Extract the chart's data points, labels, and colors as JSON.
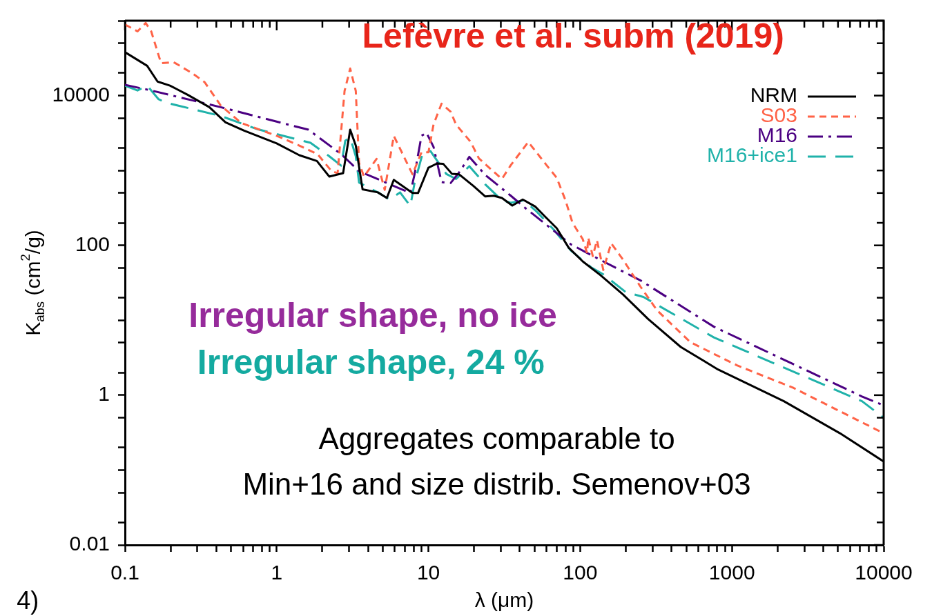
{
  "chart_data": {
    "type": "line",
    "xlabel": "λ (μm)",
    "ylabel": "K$_{abs}$ (cm$^{2}$/g)",
    "log": "xy",
    "legend": "top right",
    "marker": "none",
    "xlim": [
      0.1,
      10000
    ],
    "ylim": [
      0.01,
      100000
    ],
    "xticks": [
      0.1,
      {
        "value": 0.2,
        "label": null
      },
      {
        "value": 0.3,
        "label": null
      },
      {
        "value": 0.4,
        "label": null
      },
      {
        "value": 0.5,
        "label": null
      },
      {
        "value": 0.6,
        "label": null
      },
      {
        "value": 0.7,
        "label": null
      },
      {
        "value": 0.8,
        "label": null
      },
      {
        "value": 0.9,
        "label": null
      },
      1,
      {
        "value": 2,
        "label": null
      },
      {
        "value": 3,
        "label": null
      },
      {
        "value": 4,
        "label": null
      },
      {
        "value": 5,
        "label": null
      },
      {
        "value": 6,
        "label": null
      },
      {
        "value": 7,
        "label": null
      },
      {
        "value": 8,
        "label": null
      },
      {
        "value": 9,
        "label": null
      },
      10,
      {
        "value": 20,
        "label": null
      },
      {
        "value": 30,
        "label": null
      },
      {
        "value": 40,
        "label": null
      },
      {
        "value": 50,
        "label": null
      },
      {
        "value": 60,
        "label": null
      },
      {
        "value": 70,
        "label": null
      },
      {
        "value": 80,
        "label": null
      },
      {
        "value": 90,
        "label": null
      },
      100,
      {
        "value": 200,
        "label": null
      },
      {
        "value": 300,
        "label": null
      },
      {
        "value": 400,
        "label": null
      },
      {
        "value": 500,
        "label": null
      },
      {
        "value": 600,
        "label": null
      },
      {
        "value": 700,
        "label": null
      },
      {
        "value": 800,
        "label": null
      },
      {
        "value": 900,
        "label": null
      },
      1000,
      {
        "value": 2000,
        "label": null
      },
      {
        "value": 3000,
        "label": null
      },
      {
        "value": 4000,
        "label": null
      },
      {
        "value": 5000,
        "label": null
      },
      {
        "value": 6000,
        "label": null
      },
      {
        "value": 7000,
        "label": null
      },
      {
        "value": 8000,
        "label": null
      },
      {
        "value": 9000,
        "label": null
      },
      10000
    ],
    "yticks": [
      0.01,
      {
        "value": 0.02,
        "label": null
      },
      {
        "value": 0.05,
        "label": null
      },
      {
        "value": 0.1,
        "label": null
      },
      {
        "value": 0.2,
        "label": null
      },
      {
        "value": 0.5,
        "label": null
      },
      1,
      {
        "value": 2,
        "label": null
      },
      {
        "value": 5,
        "label": null
      },
      {
        "value": 10,
        "label": null
      },
      {
        "value": 20,
        "label": null
      },
      {
        "value": 50,
        "label": null
      },
      100,
      {
        "value": 200,
        "label": null
      },
      {
        "value": 500,
        "label": null
      },
      {
        "value": 1000,
        "label": null
      },
      {
        "value": 2000,
        "label": null
      },
      {
        "value": 5000,
        "label": null
      },
      10000,
      {
        "value": 20000,
        "label": null
      },
      {
        "value": 50000,
        "label": null
      },
      {
        "value": 100000,
        "label": null
      }
    ],
    "series": [
      {
        "name": "NRM",
        "color": "#000000",
        "line_style": "solid",
        "x": [
          0.1,
          0.14,
          0.164,
          0.198,
          0.26,
          0.36,
          0.46,
          0.61,
          1,
          1.41,
          1.84,
          2.22,
          2.74,
          3.05,
          3.32,
          3.68,
          4.64,
          5.32,
          5.91,
          7.85,
          8.54,
          10,
          11.4,
          12.5,
          14.3,
          15.9,
          19.8,
          23.7,
          26.9,
          30.5,
          35.7,
          41.8,
          50.5,
          59,
          70,
          84,
          104,
          136,
          192,
          280,
          460,
          810,
          2200,
          5150,
          10000
        ],
        "values": [
          38000,
          25000,
          15400,
          13600,
          10200,
          7000,
          4400,
          3400,
          2300,
          1600,
          1340,
          830,
          920,
          3500,
          2150,
          560,
          510,
          430,
          750,
          500,
          500,
          1090,
          1240,
          1230,
          900,
          890,
          620,
          450,
          460,
          430,
          340,
          410,
          330,
          240,
          170,
          93,
          61,
          40,
          22,
          10.4,
          4.4,
          2.2,
          0.83,
          0.31,
          0.13
        ]
      },
      {
        "name": "S03",
        "color": "#ff6347",
        "line_style": "dashed",
        "x": [
          0.1,
          0.121,
          0.137,
          0.149,
          0.173,
          0.209,
          0.28,
          0.335,
          0.427,
          0.585,
          1,
          1.41,
          1.86,
          2.3,
          2.52,
          2.8,
          3.05,
          3.32,
          3.49,
          3.76,
          4.55,
          5.15,
          5.91,
          7.85,
          9,
          10,
          10.8,
          12.2,
          14,
          15.2,
          19,
          21.5,
          25.8,
          30.5,
          34.9,
          45.5,
          59,
          70,
          80,
          89,
          104,
          111,
          113,
          121,
          129,
          142,
          160,
          192,
          250,
          321,
          532,
          1080,
          2520,
          10000
        ],
        "values": [
          89000,
          72000,
          93000,
          72000,
          27000,
          28000,
          19700,
          15100,
          7400,
          4300,
          2900,
          2150,
          1650,
          980,
          920,
          11500,
          23000,
          11500,
          1260,
          830,
          1430,
          550,
          2900,
          890,
          1750,
          1750,
          4100,
          7800,
          6100,
          4100,
          2400,
          1450,
          1040,
          770,
          1180,
          2400,
          1230,
          800,
          400,
          200,
          121,
          79,
          127,
          72,
          117,
          47,
          107,
          64,
          28,
          13.6,
          5.1,
          2.5,
          1.26,
          0.31
        ]
      },
      {
        "name": "M16",
        "color": "#4b0082",
        "line_style": "dashdot",
        "x": [
          0.1,
          0.149,
          0.427,
          1.62,
          2.66,
          3.49,
          5.32,
          7.6,
          8.1,
          9,
          9.7,
          10.8,
          12.2,
          14,
          15.9,
          18.6,
          23.7,
          34.9,
          43.5,
          64,
          87,
          142,
          250,
          760,
          7200,
          10000
        ],
        "values": [
          13900,
          11700,
          7000,
          3500,
          1650,
          980,
          680,
          500,
          890,
          2900,
          3200,
          2070,
          700,
          680,
          940,
          1520,
          870,
          460,
          315,
          169,
          103,
          61,
          34,
          8.2,
          0.96,
          0.73
        ]
      },
      {
        "name": "M16+ice1",
        "color": "#20b2aa",
        "line_style": "longdash",
        "x": [
          0.1,
          0.121,
          0.14,
          0.166,
          0.184,
          0.427,
          0.753,
          1.67,
          2.22,
          2.66,
          2.83,
          3.05,
          3.32,
          3.49,
          4.64,
          5.55,
          6.5,
          7.6,
          8.1,
          9.2,
          10.3,
          13.1,
          15.2,
          18.6,
          23.7,
          30.5,
          34.9,
          42.7,
          51.5,
          67,
          87,
          118,
          142,
          200,
          261,
          760,
          7200,
          10000
        ],
        "values": [
          13600,
          11700,
          13600,
          9000,
          8100,
          5350,
          3540,
          2340,
          1550,
          1160,
          2500,
          2760,
          1550,
          690,
          510,
          410,
          510,
          335,
          680,
          1750,
          1820,
          900,
          770,
          1140,
          650,
          400,
          370,
          400,
          284,
          162,
          85,
          51,
          41,
          23.7,
          20.5,
          5.9,
          0.83,
          0.5
        ]
      }
    ],
    "annotations": [
      "Lefèvre et al. subm (2019)",
      "Irregular shape, no ice",
      "Irregular shape, 24 %",
      "Aggregates comparable to\nMin+16 and size distrib. Semenov+03",
      "4)"
    ]
  }
}
